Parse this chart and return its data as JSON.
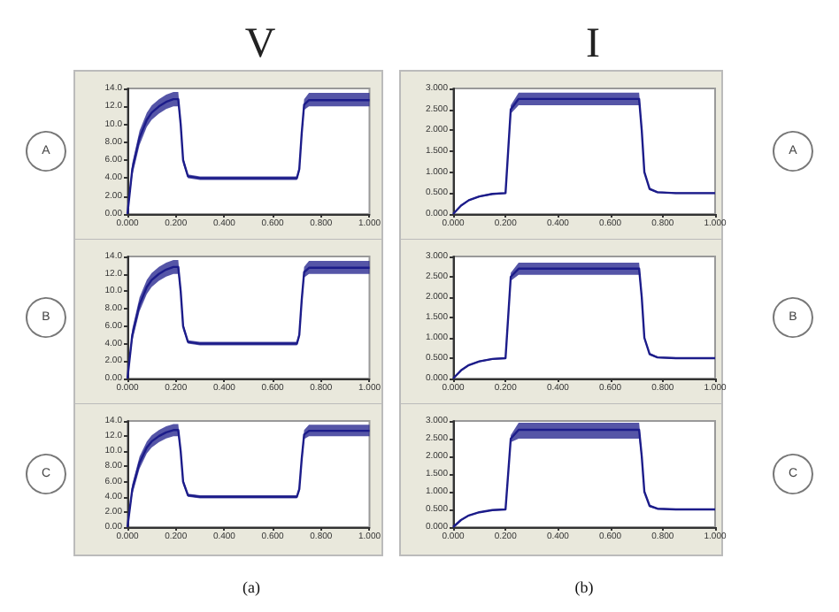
{
  "chart_data": [
    {
      "type": "line",
      "title": "V",
      "annotations": [
        "A"
      ],
      "grid": false,
      "marker": "none",
      "line_style": "solid",
      "x": [
        0,
        0.02,
        0.05,
        0.08,
        0.1,
        0.13,
        0.16,
        0.19,
        0.21,
        0.22,
        0.23,
        0.25,
        0.3,
        0.5,
        0.7,
        0.71,
        0.72,
        0.73,
        0.75,
        0.8,
        0.9,
        1.0
      ],
      "series": [
        {
          "color": "#1c1c8a",
          "values": [
            0,
            5,
            8.5,
            10.5,
            11.3,
            12,
            12.5,
            12.8,
            12.8,
            10,
            6,
            4.2,
            4,
            4,
            4,
            5,
            9,
            12.2,
            12.7,
            12.7,
            12.7,
            12.7
          ],
          "lower": [
            0,
            4.3,
            7.7,
            9.7,
            10.5,
            11.2,
            11.7,
            12,
            12,
            9.6,
            5.6,
            4,
            3.8,
            3.8,
            3.8,
            4.6,
            8.4,
            11.6,
            12,
            12,
            12,
            12
          ],
          "upper": [
            0,
            5.7,
            9.3,
            11.3,
            12.1,
            12.8,
            13.3,
            13.6,
            13.6,
            10.4,
            6.4,
            4.4,
            4.2,
            4.2,
            4.2,
            5.4,
            9.6,
            12.8,
            13.5,
            13.5,
            13.5,
            13.5
          ]
        }
      ],
      "xlim": [
        0,
        1.0
      ],
      "xticks": [
        {
          "value": 0,
          "label": "0.000"
        },
        {
          "value": 0.2,
          "label": "0.200"
        },
        {
          "value": 0.4,
          "label": "0.400"
        },
        {
          "value": 0.6,
          "label": "0.600"
        },
        {
          "value": 0.8,
          "label": "0.800"
        },
        {
          "value": 1.0,
          "label": "1.000"
        }
      ],
      "ylim": [
        0,
        14
      ],
      "yticks": [
        {
          "value": 0,
          "label": "0.00"
        },
        {
          "value": 2,
          "label": "2.00"
        },
        {
          "value": 4,
          "label": "4.00"
        },
        {
          "value": 6,
          "label": "6.00"
        },
        {
          "value": 8,
          "label": "8.00"
        },
        {
          "value": 10,
          "label": "10.0"
        },
        {
          "value": 12,
          "label": "12.0"
        },
        {
          "value": 14,
          "label": "14.0"
        }
      ]
    },
    {
      "type": "line",
      "title": "I",
      "annotations": [
        "A"
      ],
      "grid": false,
      "marker": "none",
      "line_style": "solid",
      "x": [
        0,
        0.03,
        0.06,
        0.1,
        0.15,
        0.2,
        0.21,
        0.22,
        0.25,
        0.4,
        0.6,
        0.71,
        0.72,
        0.73,
        0.75,
        0.78,
        0.85,
        1.0
      ],
      "series": [
        {
          "color": "#1c1c8a",
          "values": [
            0,
            0.2,
            0.33,
            0.42,
            0.48,
            0.5,
            1.5,
            2.5,
            2.75,
            2.75,
            2.75,
            2.75,
            2.0,
            1.0,
            0.6,
            0.52,
            0.5,
            0.5
          ],
          "lower": [
            0,
            0.18,
            0.31,
            0.4,
            0.46,
            0.48,
            1.4,
            2.4,
            2.6,
            2.6,
            2.6,
            2.6,
            1.9,
            0.95,
            0.57,
            0.5,
            0.48,
            0.48
          ],
          "upper": [
            0,
            0.22,
            0.35,
            0.44,
            0.5,
            0.52,
            1.6,
            2.6,
            2.9,
            2.9,
            2.9,
            2.9,
            2.1,
            1.05,
            0.63,
            0.54,
            0.52,
            0.52
          ]
        }
      ],
      "xlim": [
        0,
        1.0
      ],
      "xticks": [
        {
          "value": 0,
          "label": "0.000"
        },
        {
          "value": 0.2,
          "label": "0.200"
        },
        {
          "value": 0.4,
          "label": "0.400"
        },
        {
          "value": 0.6,
          "label": "0.600"
        },
        {
          "value": 0.8,
          "label": "0.800"
        },
        {
          "value": 1.0,
          "label": "1.000"
        }
      ],
      "ylim": [
        0,
        3
      ],
      "yticks": [
        {
          "value": 0,
          "label": "0.000"
        },
        {
          "value": 0.5,
          "label": "0.500"
        },
        {
          "value": 1,
          "label": "1.000"
        },
        {
          "value": 1.5,
          "label": "1.500"
        },
        {
          "value": 2,
          "label": "2.000"
        },
        {
          "value": 2.5,
          "label": "2.500"
        },
        {
          "value": 3,
          "label": "3.000"
        }
      ]
    },
    {
      "type": "line",
      "annotations": [
        "B"
      ],
      "grid": false,
      "marker": "none",
      "line_style": "solid",
      "x": [
        0,
        0.02,
        0.05,
        0.08,
        0.1,
        0.13,
        0.16,
        0.19,
        0.21,
        0.22,
        0.23,
        0.25,
        0.3,
        0.5,
        0.7,
        0.71,
        0.72,
        0.73,
        0.75,
        0.8,
        0.9,
        1.0
      ],
      "series": [
        {
          "color": "#1c1c8a",
          "values": [
            0,
            5,
            8.5,
            10.5,
            11.3,
            12,
            12.5,
            12.8,
            12.8,
            10,
            6,
            4.2,
            4,
            4,
            4,
            5,
            9,
            12.2,
            12.7,
            12.7,
            12.7,
            12.7
          ],
          "lower": [
            0,
            4.3,
            7.7,
            9.7,
            10.5,
            11.2,
            11.7,
            12,
            12,
            9.6,
            5.6,
            4,
            3.8,
            3.8,
            3.8,
            4.6,
            8.4,
            11.6,
            12,
            12,
            12,
            12
          ],
          "upper": [
            0,
            5.7,
            9.3,
            11.3,
            12.1,
            12.8,
            13.3,
            13.6,
            13.6,
            10.4,
            6.4,
            4.4,
            4.2,
            4.2,
            4.2,
            5.4,
            9.6,
            12.8,
            13.5,
            13.5,
            13.5,
            13.5
          ]
        }
      ],
      "xlim": [
        0,
        1.0
      ],
      "xticks": [
        {
          "value": 0,
          "label": "0.000"
        },
        {
          "value": 0.2,
          "label": "0.200"
        },
        {
          "value": 0.4,
          "label": "0.400"
        },
        {
          "value": 0.6,
          "label": "0.600"
        },
        {
          "value": 0.8,
          "label": "0.800"
        },
        {
          "value": 1.0,
          "label": "1.000"
        }
      ],
      "ylim": [
        0,
        14
      ],
      "yticks": [
        {
          "value": 0,
          "label": "0.00"
        },
        {
          "value": 2,
          "label": "2.00"
        },
        {
          "value": 4,
          "label": "4.00"
        },
        {
          "value": 6,
          "label": "6.00"
        },
        {
          "value": 8,
          "label": "8.00"
        },
        {
          "value": 10,
          "label": "10.0"
        },
        {
          "value": 12,
          "label": "12.0"
        },
        {
          "value": 14,
          "label": "14.0"
        }
      ]
    },
    {
      "type": "line",
      "annotations": [
        "B"
      ],
      "grid": false,
      "marker": "none",
      "line_style": "solid",
      "x": [
        0,
        0.03,
        0.06,
        0.1,
        0.15,
        0.2,
        0.21,
        0.22,
        0.25,
        0.4,
        0.6,
        0.71,
        0.72,
        0.73,
        0.75,
        0.78,
        0.85,
        1.0
      ],
      "series": [
        {
          "color": "#1c1c8a",
          "values": [
            0,
            0.2,
            0.33,
            0.42,
            0.48,
            0.5,
            1.5,
            2.5,
            2.7,
            2.7,
            2.7,
            2.7,
            2.0,
            1.0,
            0.6,
            0.52,
            0.5,
            0.5
          ],
          "lower": [
            0,
            0.18,
            0.31,
            0.4,
            0.46,
            0.48,
            1.4,
            2.4,
            2.55,
            2.55,
            2.55,
            2.55,
            1.9,
            0.95,
            0.57,
            0.5,
            0.48,
            0.48
          ],
          "upper": [
            0,
            0.22,
            0.35,
            0.44,
            0.5,
            0.52,
            1.6,
            2.6,
            2.85,
            2.85,
            2.85,
            2.85,
            2.1,
            1.05,
            0.63,
            0.54,
            0.52,
            0.52
          ]
        }
      ],
      "xlim": [
        0,
        1.0
      ],
      "xticks": [
        {
          "value": 0,
          "label": "0.000"
        },
        {
          "value": 0.2,
          "label": "0.200"
        },
        {
          "value": 0.4,
          "label": "0.400"
        },
        {
          "value": 0.6,
          "label": "0.600"
        },
        {
          "value": 0.8,
          "label": "0.800"
        },
        {
          "value": 1.0,
          "label": "1.000"
        }
      ],
      "ylim": [
        0,
        3
      ],
      "yticks": [
        {
          "value": 0,
          "label": "0.000"
        },
        {
          "value": 0.5,
          "label": "0.500"
        },
        {
          "value": 1,
          "label": "1.000"
        },
        {
          "value": 1.5,
          "label": "1.500"
        },
        {
          "value": 2,
          "label": "2.000"
        },
        {
          "value": 2.5,
          "label": "2.500"
        },
        {
          "value": 3,
          "label": "3.000"
        }
      ]
    },
    {
      "type": "line",
      "annotations": [
        "C",
        "(a)"
      ],
      "grid": false,
      "marker": "none",
      "line_style": "solid",
      "x": [
        0,
        0.02,
        0.05,
        0.08,
        0.1,
        0.13,
        0.16,
        0.19,
        0.21,
        0.22,
        0.23,
        0.25,
        0.3,
        0.5,
        0.7,
        0.71,
        0.72,
        0.73,
        0.75,
        0.8,
        0.9,
        1.0
      ],
      "series": [
        {
          "color": "#1c1c8a",
          "values": [
            0,
            5,
            8.5,
            10.5,
            11.3,
            12,
            12.5,
            12.8,
            12.8,
            10,
            6,
            4.2,
            4,
            4,
            4,
            5,
            9,
            12.2,
            12.7,
            12.7,
            12.7,
            12.7
          ],
          "lower": [
            0,
            4.3,
            7.7,
            9.7,
            10.5,
            11.2,
            11.7,
            12,
            12,
            9.6,
            5.6,
            4,
            3.8,
            3.8,
            3.8,
            4.6,
            8.4,
            11.6,
            12,
            12,
            12,
            12
          ],
          "upper": [
            0,
            5.7,
            9.3,
            11.3,
            12.1,
            12.8,
            13.3,
            13.6,
            13.6,
            10.4,
            6.4,
            4.4,
            4.2,
            4.2,
            4.2,
            5.4,
            9.6,
            12.8,
            13.5,
            13.5,
            13.5,
            13.5
          ]
        }
      ],
      "xlim": [
        0,
        1.0
      ],
      "xticks": [
        {
          "value": 0,
          "label": "0.000"
        },
        {
          "value": 0.2,
          "label": "0.200"
        },
        {
          "value": 0.4,
          "label": "0.400"
        },
        {
          "value": 0.6,
          "label": "0.600"
        },
        {
          "value": 0.8,
          "label": "0.800"
        },
        {
          "value": 1.0,
          "label": "1.000"
        }
      ],
      "ylim": [
        0,
        14
      ],
      "yticks": [
        {
          "value": 0,
          "label": "0.00"
        },
        {
          "value": 2,
          "label": "2.00"
        },
        {
          "value": 4,
          "label": "4.00"
        },
        {
          "value": 6,
          "label": "6.00"
        },
        {
          "value": 8,
          "label": "8.00"
        },
        {
          "value": 10,
          "label": "10.0"
        },
        {
          "value": 12,
          "label": "12.0"
        },
        {
          "value": 14,
          "label": "14.0"
        }
      ]
    },
    {
      "type": "line",
      "annotations": [
        "C",
        "(b)"
      ],
      "grid": false,
      "marker": "none",
      "line_style": "solid",
      "x": [
        0,
        0.03,
        0.06,
        0.1,
        0.15,
        0.2,
        0.21,
        0.22,
        0.25,
        0.4,
        0.6,
        0.71,
        0.72,
        0.73,
        0.75,
        0.78,
        0.85,
        1.0
      ],
      "series": [
        {
          "color": "#1c1c8a",
          "values": [
            0,
            0.2,
            0.33,
            0.42,
            0.48,
            0.5,
            1.5,
            2.5,
            2.75,
            2.75,
            2.75,
            2.75,
            2.0,
            1.0,
            0.6,
            0.52,
            0.5,
            0.5
          ],
          "lower": [
            0,
            0.18,
            0.31,
            0.4,
            0.46,
            0.48,
            1.4,
            2.4,
            2.5,
            2.5,
            2.5,
            2.5,
            1.9,
            0.95,
            0.57,
            0.5,
            0.48,
            0.48
          ],
          "upper": [
            0,
            0.22,
            0.35,
            0.44,
            0.5,
            0.52,
            1.6,
            2.6,
            2.95,
            2.95,
            2.95,
            2.95,
            2.1,
            1.05,
            0.63,
            0.54,
            0.52,
            0.52
          ]
        }
      ],
      "xlim": [
        0,
        1.0
      ],
      "xticks": [
        {
          "value": 0,
          "label": "0.000"
        },
        {
          "value": 0.2,
          "label": "0.200"
        },
        {
          "value": 0.4,
          "label": "0.400"
        },
        {
          "value": 0.6,
          "label": "0.600"
        },
        {
          "value": 0.8,
          "label": "0.800"
        },
        {
          "value": 1.0,
          "label": "1.000"
        }
      ],
      "ylim": [
        0,
        3
      ],
      "yticks": [
        {
          "value": 0,
          "label": "0.000"
        },
        {
          "value": 0.5,
          "label": "0.500"
        },
        {
          "value": 1,
          "label": "1.000"
        },
        {
          "value": 1.5,
          "label": "1.500"
        },
        {
          "value": 2,
          "label": "2.000"
        },
        {
          "value": 2.5,
          "label": "2.500"
        },
        {
          "value": 3,
          "label": "3.000"
        }
      ]
    }
  ]
}
